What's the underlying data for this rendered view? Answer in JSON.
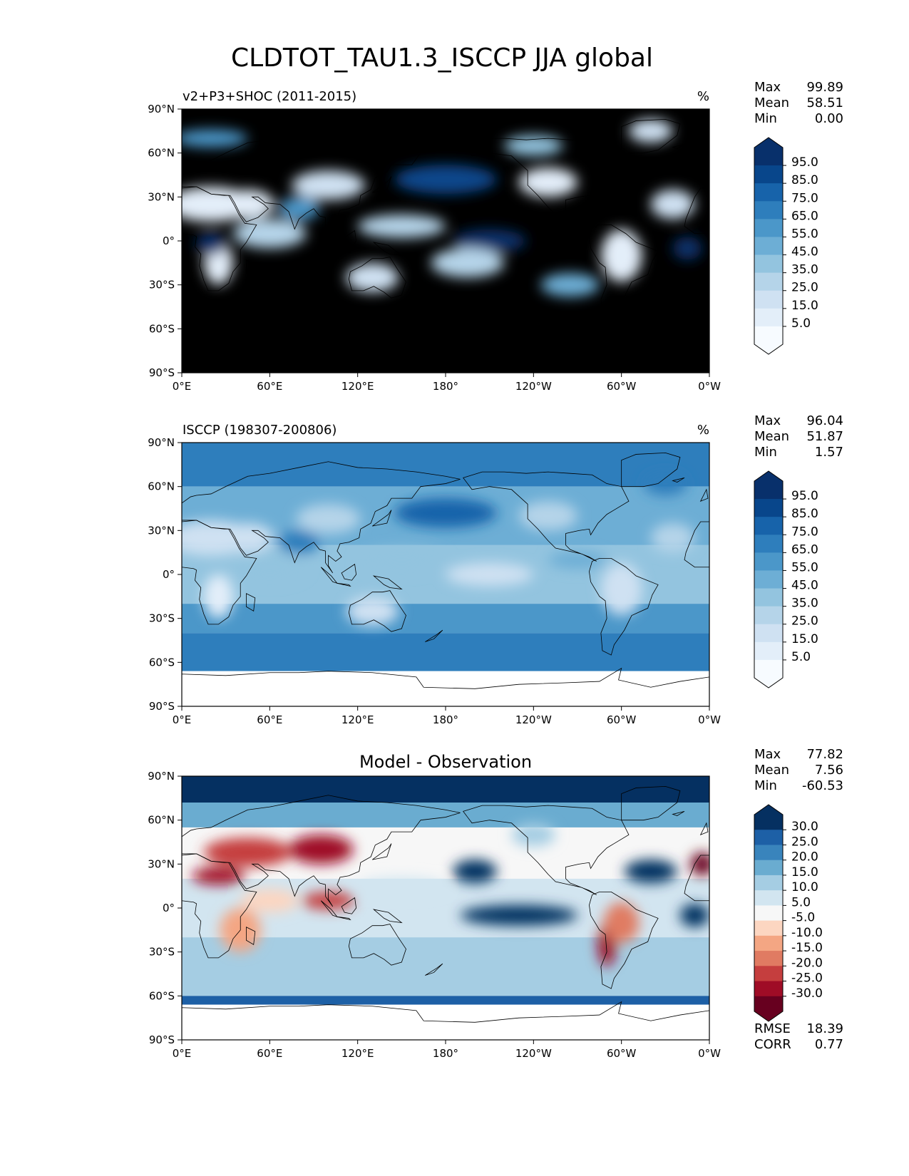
{
  "figure": {
    "title": "CLDTOT_TAU1.3_ISCCP JJA global"
  },
  "colors": {
    "seq": [
      "#f7fbff",
      "#e3eef9",
      "#cfe1f2",
      "#b5d4e9",
      "#93c4df",
      "#6daed5",
      "#4b97c9",
      "#2e7ebc",
      "#1763aa",
      "#08468b",
      "#08306b"
    ],
    "div": [
      "#67001f",
      "#9f0c26",
      "#c53e3e",
      "#e07b62",
      "#f4a683",
      "#fcd6c1",
      "#f7f7f7",
      "#d2e5f0",
      "#a5cde3",
      "#6aacd0",
      "#3984bc",
      "#1d60a6",
      "#053061"
    ]
  },
  "chart_data": [
    {
      "type": "heatmap",
      "panel": "model",
      "title": "v2+P3+SHOC (2011-2015)",
      "units": "%",
      "xticks": [
        "0°E",
        "60°E",
        "120°E",
        "180°",
        "120°W",
        "60°W",
        "0°W"
      ],
      "yticks": [
        "90°N",
        "60°N",
        "30°N",
        "0°",
        "30°S",
        "60°S",
        "90°S"
      ],
      "stats": [
        {
          "label": "Max",
          "value": "99.89"
        },
        {
          "label": "Mean",
          "value": "58.51"
        },
        {
          "label": "Min",
          "value": "0.00"
        }
      ],
      "colorbar": {
        "levels": [
          "95.0",
          "85.0",
          "75.0",
          "65.0",
          "55.0",
          "45.0",
          "35.0",
          "25.0",
          "15.0",
          "5.0"
        ],
        "extend": "both"
      }
    },
    {
      "type": "heatmap",
      "panel": "observation",
      "title": "ISCCP (198307-200806)",
      "units": "%",
      "xticks": [
        "0°E",
        "60°E",
        "120°E",
        "180°",
        "120°W",
        "60°W",
        "0°W"
      ],
      "yticks": [
        "90°N",
        "60°N",
        "30°N",
        "0°",
        "30°S",
        "60°S",
        "90°S"
      ],
      "stats": [
        {
          "label": "Max",
          "value": "96.04"
        },
        {
          "label": "Mean",
          "value": "51.87"
        },
        {
          "label": "Min",
          "value": "1.57"
        }
      ],
      "colorbar": {
        "levels": [
          "95.0",
          "85.0",
          "75.0",
          "65.0",
          "55.0",
          "45.0",
          "35.0",
          "25.0",
          "15.0",
          "5.0"
        ],
        "extend": "both"
      }
    },
    {
      "type": "heatmap",
      "panel": "difference",
      "title": "Model - Observation",
      "xticks": [
        "0°E",
        "60°E",
        "120°E",
        "180°",
        "120°W",
        "60°W",
        "0°W"
      ],
      "yticks": [
        "90°N",
        "60°N",
        "30°N",
        "0°",
        "30°S",
        "60°S",
        "90°S"
      ],
      "stats": [
        {
          "label": "Max",
          "value": "77.82"
        },
        {
          "label": "Mean",
          "value": "7.56"
        },
        {
          "label": "Min",
          "value": "-60.53"
        }
      ],
      "extra_stats": [
        {
          "label": "RMSE",
          "value": "18.39"
        },
        {
          "label": "CORR",
          "value": "0.77"
        }
      ],
      "colorbar": {
        "levels": [
          "30.0",
          "25.0",
          "20.0",
          "15.0",
          "10.0",
          "5.0",
          "-5.0",
          "-10.0",
          "-15.0",
          "-20.0",
          "-25.0",
          "-30.0"
        ],
        "extend": "both"
      }
    }
  ]
}
